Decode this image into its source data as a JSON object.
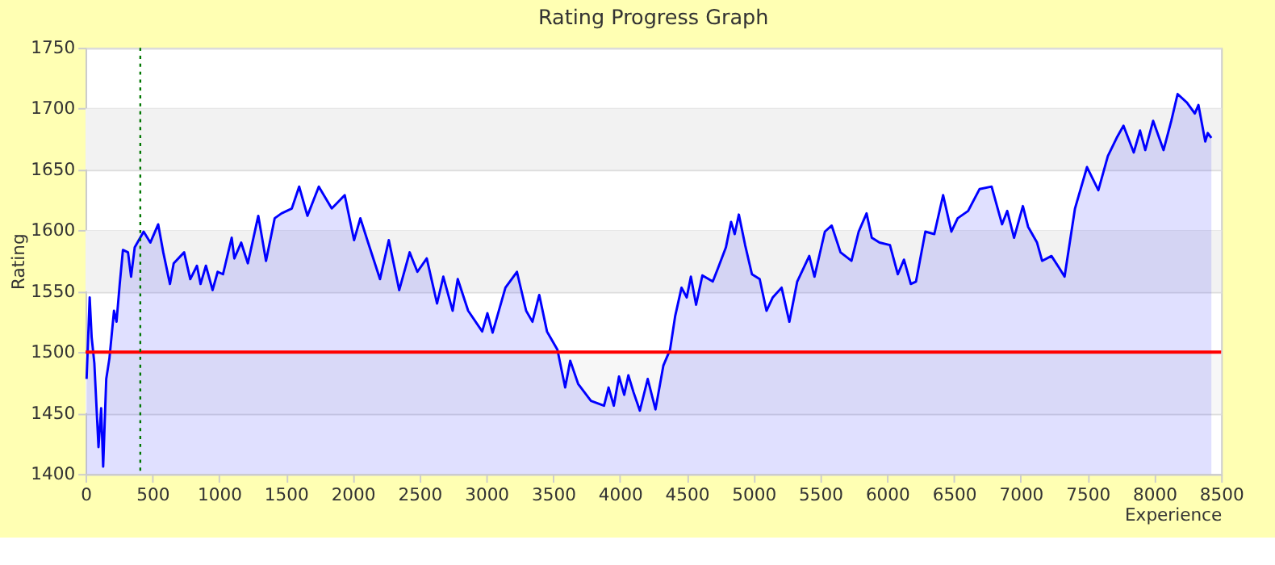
{
  "chart_data": {
    "type": "area",
    "title": "Rating Progress Graph",
    "xlabel": "Experience",
    "ylabel": "Rating",
    "xlim": [
      0,
      8500
    ],
    "xticks": [
      0,
      500,
      1000,
      1500,
      2000,
      2500,
      3000,
      3500,
      4000,
      4500,
      5000,
      5500,
      6000,
      6500,
      7000,
      7500,
      8000,
      8500
    ],
    "ylim": [
      1400,
      1750
    ],
    "yticks": [
      1400,
      1450,
      1500,
      1550,
      1600,
      1650,
      1700,
      1750
    ],
    "grid": "y",
    "bands": [
      {
        "axis": "y",
        "from": 1450,
        "to": 1500,
        "color": "#f7f7f7"
      },
      {
        "axis": "y",
        "from": 1550,
        "to": 1600,
        "color": "#f2f2f2"
      },
      {
        "axis": "y",
        "from": 1650,
        "to": 1700,
        "color": "#f2f2f2"
      }
    ],
    "ref_lines": [
      {
        "axis": "y",
        "value": 1500,
        "color": "#ff0000",
        "line_style": "solid"
      },
      {
        "axis": "x",
        "value": 410,
        "color": "#007700",
        "line_style": "dotted"
      }
    ],
    "series": [
      {
        "color": "#0000ff",
        "x": [
          8,
          31,
          46,
          66,
          97,
          117,
          132,
          155,
          179,
          213,
          232,
          256,
          280,
          318,
          341,
          368,
          435,
          485,
          544,
          582,
          632,
          660,
          738,
          784,
          834,
          861,
          901,
          951,
          989,
          1029,
          1094,
          1114,
          1165,
          1215,
          1293,
          1351,
          1416,
          1467,
          1544,
          1599,
          1661,
          1746,
          1843,
          1940,
          2010,
          2057,
          2115,
          2204,
          2270,
          2348,
          2426,
          2484,
          2554,
          2631,
          2678,
          2748,
          2786,
          2864,
          2969,
          3008,
          3047,
          3143,
          3229,
          3298,
          3345,
          3396,
          3454,
          3532,
          3590,
          3628,
          3687,
          3783,
          3881,
          3915,
          3954,
          3993,
          4032,
          4063,
          4102,
          4149,
          4208,
          4266,
          4325,
          4375,
          4414,
          4461,
          4500,
          4531,
          4570,
          4617,
          4695,
          4734,
          4793,
          4832,
          4859,
          4890,
          4937,
          4988,
          5046,
          5097,
          5144,
          5210,
          5268,
          5327,
          5417,
          5456,
          5534,
          5585,
          5651,
          5733,
          5787,
          5846,
          5885,
          5943,
          6021,
          6080,
          6126,
          6177,
          6216,
          6286,
          6353,
          6419,
          6481,
          6528,
          6606,
          6692,
          6782,
          6860,
          6899,
          6950,
          7016,
          7055,
          7122,
          7160,
          7230,
          7289,
          7328,
          7406,
          7496,
          7581,
          7652,
          7718,
          7769,
          7846,
          7893,
          7932,
          7991,
          8069,
          8127,
          8174,
          8244,
          8303,
          8330,
          8381,
          8400,
          8427
        ],
        "values": [
          1478,
          1545,
          1512,
          1491,
          1422,
          1454,
          1406,
          1478,
          1495,
          1534,
          1525,
          1556,
          1584,
          1582,
          1562,
          1586,
          1599,
          1590,
          1605,
          1582,
          1556,
          1573,
          1582,
          1560,
          1571,
          1556,
          1571,
          1551,
          1566,
          1564,
          1594,
          1577,
          1590,
          1573,
          1612,
          1575,
          1610,
          1614,
          1618,
          1636,
          1612,
          1636,
          1618,
          1629,
          1592,
          1610,
          1590,
          1560,
          1592,
          1551,
          1582,
          1566,
          1577,
          1540,
          1562,
          1534,
          1560,
          1534,
          1517,
          1532,
          1516,
          1553,
          1566,
          1534,
          1525,
          1547,
          1517,
          1502,
          1471,
          1493,
          1474,
          1460,
          1456,
          1471,
          1456,
          1480,
          1465,
          1481,
          1467,
          1452,
          1478,
          1453,
          1489,
          1502,
          1530,
          1553,
          1545,
          1562,
          1539,
          1563,
          1558,
          1569,
          1586,
          1607,
          1597,
          1613,
          1588,
          1564,
          1560,
          1534,
          1545,
          1553,
          1525,
          1558,
          1579,
          1562,
          1599,
          1604,
          1582,
          1575,
          1599,
          1614,
          1594,
          1590,
          1588,
          1564,
          1576,
          1556,
          1558,
          1599,
          1597,
          1629,
          1599,
          1610,
          1616,
          1634,
          1636,
          1605,
          1616,
          1594,
          1620,
          1603,
          1590,
          1575,
          1579,
          1569,
          1562,
          1618,
          1652,
          1633,
          1661,
          1676,
          1686,
          1664,
          1682,
          1666,
          1690,
          1666,
          1690,
          1712,
          1705,
          1696,
          1703,
          1673,
          1680,
          1676
        ]
      }
    ]
  }
}
